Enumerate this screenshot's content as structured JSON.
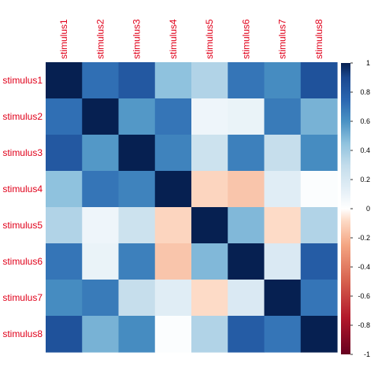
{
  "chart_data": {
    "type": "heatmap",
    "title": "",
    "xlabel": "",
    "ylabel": "",
    "rows": [
      "stimulus1",
      "stimulus2",
      "stimulus3",
      "stimulus4",
      "stimulus5",
      "stimulus6",
      "stimulus7",
      "stimulus8"
    ],
    "columns": [
      "stimulus1",
      "stimulus2",
      "stimulus3",
      "stimulus4",
      "stimulus5",
      "stimulus6",
      "stimulus7",
      "stimulus8"
    ],
    "values": [
      [
        1.0,
        0.72,
        0.82,
        0.45,
        0.35,
        0.7,
        0.62,
        0.85
      ],
      [
        0.72,
        1.0,
        0.58,
        0.7,
        0.08,
        0.1,
        0.68,
        0.5
      ],
      [
        0.82,
        0.58,
        1.0,
        0.65,
        0.25,
        0.66,
        0.28,
        0.62
      ],
      [
        0.45,
        0.7,
        0.65,
        1.0,
        -0.1,
        -0.15,
        0.15,
        0.02
      ],
      [
        0.35,
        0.08,
        0.25,
        -0.1,
        1.0,
        0.48,
        -0.08,
        0.35
      ],
      [
        0.7,
        0.1,
        0.66,
        -0.15,
        0.48,
        1.0,
        0.18,
        0.8
      ],
      [
        0.62,
        0.68,
        0.28,
        0.15,
        -0.08,
        0.18,
        1.0,
        0.7
      ],
      [
        0.85,
        0.5,
        0.62,
        0.02,
        0.35,
        0.8,
        0.7,
        1.0
      ]
    ],
    "color_scale": {
      "range": [
        -1,
        1
      ],
      "ticks": [
        1,
        0.8,
        0.6,
        0.4,
        0.2,
        0,
        -0.2,
        -0.4,
        -0.6,
        -0.8,
        -1
      ],
      "tick_labels": [
        "1",
        "0.8",
        "0.6",
        "0.4",
        "0.2",
        "0",
        "-0.2",
        "-0.4",
        "-0.6",
        "-0.8",
        "-1"
      ],
      "stops": [
        {
          "v": -1.0,
          "color": "#67001f"
        },
        {
          "v": -0.75,
          "color": "#b2182b"
        },
        {
          "v": -0.5,
          "color": "#d6604d"
        },
        {
          "v": -0.25,
          "color": "#f4a582"
        },
        {
          "v": -0.08,
          "color": "#fddbc7"
        },
        {
          "v": 0.0,
          "color": "#ffffff"
        },
        {
          "v": 0.12,
          "color": "#e6f0f7"
        },
        {
          "v": 0.3,
          "color": "#c2dceb"
        },
        {
          "v": 0.45,
          "color": "#8fc2de"
        },
        {
          "v": 0.6,
          "color": "#4a92c4"
        },
        {
          "v": 0.75,
          "color": "#2a66b0"
        },
        {
          "v": 0.9,
          "color": "#1a4890"
        },
        {
          "v": 1.0,
          "color": "#062051"
        }
      ]
    },
    "label_color": "#e0001a",
    "legend_placement": "right",
    "grid": false
  }
}
